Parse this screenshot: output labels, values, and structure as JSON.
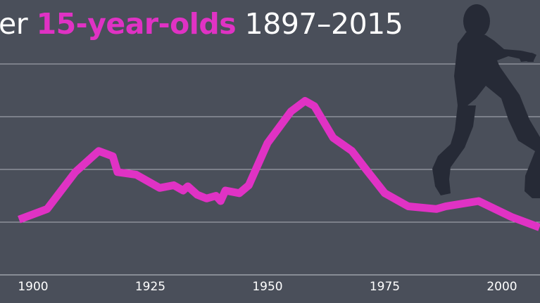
{
  "title": {
    "prefix": "er ",
    "highlight": "15-year-olds",
    "suffix": " 1897–2015"
  },
  "colors": {
    "background": "#4a4f5a",
    "line": "#e032c4",
    "grid": "#aeb2b9",
    "text": "#ffffff",
    "silhouette": "#262a36"
  },
  "decoration": {
    "silhouette": "running-child-icon"
  },
  "chart_data": {
    "type": "line",
    "title": "er 15-year-olds 1897–2015",
    "xlabel": "",
    "ylabel": "",
    "xlim": [
      1897,
      2015
    ],
    "ylim": [
      0,
      5
    ],
    "y_gridlines": [
      0,
      1,
      2,
      3,
      4
    ],
    "x_tick_labels": [
      "1900",
      "1925",
      "1950",
      "1975",
      "2000"
    ],
    "x_ticks": [
      1900,
      1925,
      1950,
      1975,
      2000
    ],
    "grid": true,
    "legend": "none",
    "series": [
      {
        "x": [
          1897,
          1903,
          1909,
          1914,
          1917,
          1918,
          1922,
          1927,
          1930,
          1932,
          1933,
          1935,
          1937,
          1939,
          1940,
          1941,
          1944,
          1946,
          1950,
          1955,
          1958,
          1960,
          1964,
          1968,
          1971,
          1975,
          1980,
          1986,
          1988,
          1995,
          2002,
          2008
        ],
        "y": [
          1.05,
          1.25,
          1.95,
          2.35,
          2.25,
          1.95,
          1.9,
          1.65,
          1.7,
          1.6,
          1.68,
          1.52,
          1.45,
          1.5,
          1.4,
          1.6,
          1.55,
          1.7,
          2.5,
          3.1,
          3.3,
          3.2,
          2.6,
          2.35,
          2.0,
          1.55,
          1.3,
          1.25,
          1.3,
          1.4,
          1.1,
          0.9
        ]
      }
    ]
  }
}
